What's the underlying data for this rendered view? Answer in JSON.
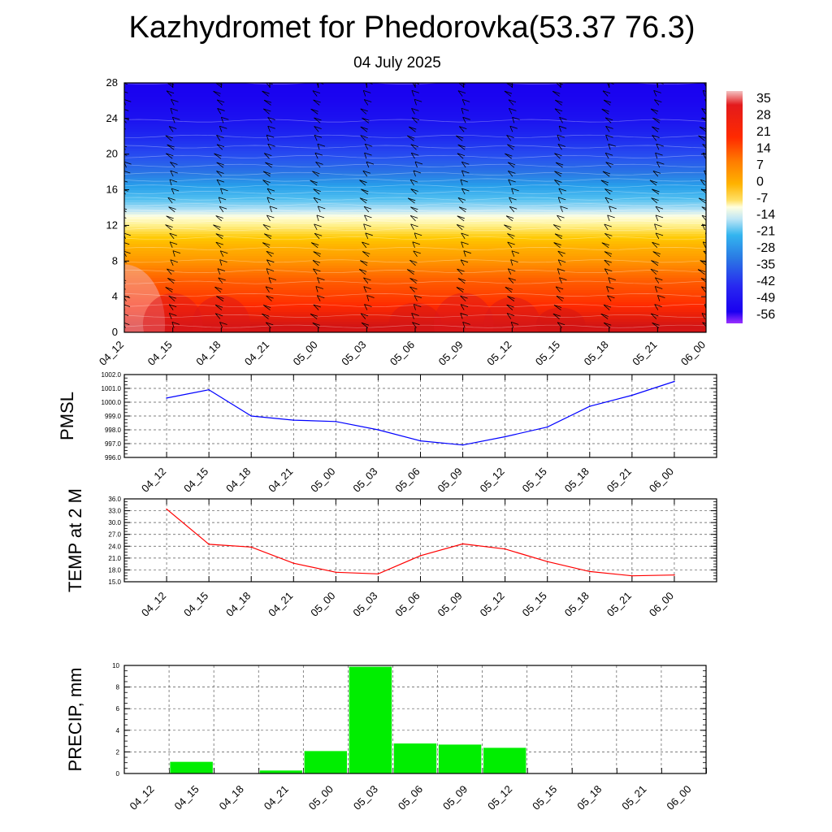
{
  "header": {
    "title": "Kazhydromet for Phedorovka(53.37 76.3)",
    "subtitle": "04 July 2025"
  },
  "time_labels": [
    "04_12",
    "04_15",
    "04_18",
    "04_21",
    "05_00",
    "05_03",
    "05_06",
    "05_09",
    "05_12",
    "05_15",
    "05_18",
    "05_21",
    "06_00"
  ],
  "colors": {
    "pmsl_line": "#0000ff",
    "temp_line": "#ff0000",
    "precip_bar": "#00ee00",
    "barb": "#000000"
  },
  "chart_data": [
    {
      "id": "cross_section",
      "type": "heatmap",
      "description_key": "temperature cross-section with wind barbs",
      "ylim": [
        0,
        28
      ],
      "yticks": [
        0,
        4,
        8,
        12,
        16,
        20,
        24,
        28
      ],
      "colorbar": {
        "labels": [
          "35",
          "28",
          "21",
          "14",
          "7",
          "0",
          "-7",
          "-14",
          "-21",
          "-28",
          "-35",
          "-42",
          "-49",
          "-56"
        ],
        "range": [
          -63,
          42
        ]
      },
      "levels_temperature": {
        "levels": [
          0,
          2,
          4,
          6,
          8,
          10,
          12,
          13,
          14,
          16,
          18,
          20,
          22,
          24,
          26,
          28
        ],
        "values": [
          30,
          24,
          18,
          13,
          7,
          2,
          -5,
          -10,
          -16,
          -26,
          -36,
          -43,
          -49,
          -53,
          -55,
          -56
        ]
      }
    },
    {
      "id": "pmsl",
      "type": "line",
      "ylabel": "PMSL",
      "ylim": [
        996.0,
        1002.0
      ],
      "yticks": [
        "996.0",
        "997.0",
        "998.0",
        "999.0",
        "1000.0",
        "1001.0",
        "1002.0"
      ],
      "x": [
        "04_12",
        "04_15",
        "04_18",
        "04_21",
        "05_00",
        "05_03",
        "05_06",
        "05_09",
        "05_12",
        "05_15",
        "05_18",
        "05_21",
        "06_00"
      ],
      "values": [
        1000.3,
        1000.9,
        999.0,
        998.7,
        998.6,
        998.0,
        997.2,
        996.9,
        997.5,
        998.2,
        999.7,
        1000.5,
        1001.5
      ]
    },
    {
      "id": "temp2m",
      "type": "line",
      "ylabel": "TEMP at 2 M",
      "ylim": [
        15.0,
        36.0
      ],
      "yticks": [
        "15.0",
        "18.0",
        "21.0",
        "24.0",
        "27.0",
        "30.0",
        "33.0",
        "36.0"
      ],
      "x": [
        "04_12",
        "04_15",
        "04_18",
        "04_21",
        "05_00",
        "05_03",
        "05_06",
        "05_09",
        "05_12",
        "05_15",
        "05_18",
        "05_21",
        "06_00"
      ],
      "values": [
        33.4,
        24.5,
        23.8,
        19.7,
        17.4,
        17.0,
        21.6,
        24.6,
        23.3,
        20.1,
        17.6,
        16.5,
        16.7
      ]
    },
    {
      "id": "precip",
      "type": "bar",
      "ylabel": "PRECIP, mm",
      "ylim": [
        0,
        10
      ],
      "yticks": [
        "0",
        "2",
        "4",
        "6",
        "8",
        "10"
      ],
      "x": [
        "04_12",
        "04_15",
        "04_18",
        "04_21",
        "05_00",
        "05_03",
        "05_06",
        "05_09",
        "05_12",
        "05_15",
        "05_18",
        "05_21",
        "06_00"
      ],
      "values": [
        0,
        1.1,
        0,
        0.3,
        2.1,
        9.9,
        2.8,
        2.7,
        2.4,
        0,
        0,
        0,
        0
      ]
    }
  ]
}
